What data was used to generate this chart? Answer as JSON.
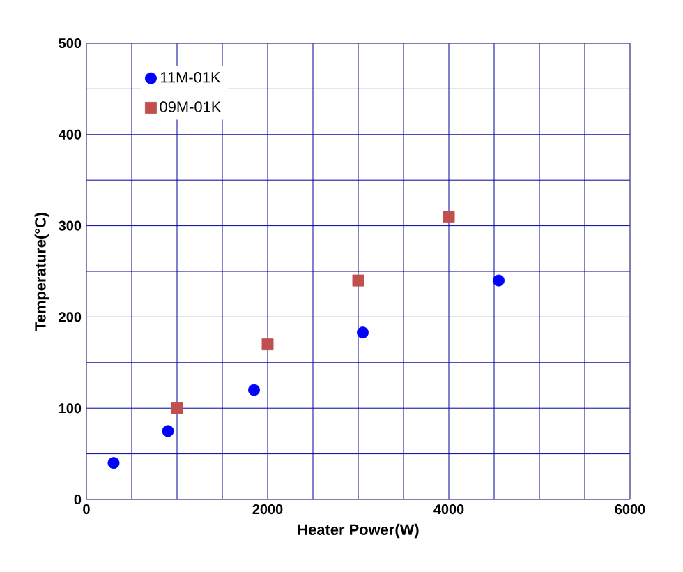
{
  "chart_data": {
    "type": "scatter",
    "xlabel": "Heater Power(W)",
    "ylabel": "Temperature(°C)",
    "xlim": [
      0,
      6000
    ],
    "xticks": [
      0,
      2000,
      4000,
      6000
    ],
    "ylim": [
      0,
      500
    ],
    "yticks": [
      0,
      100,
      200,
      300,
      400,
      500
    ],
    "grid": true,
    "legend": "top left",
    "series": [
      {
        "name": "11M-01K",
        "color": "#0000ff",
        "marker": "circle",
        "x": [
          300,
          900,
          1850,
          3050,
          4550
        ],
        "values": [
          40,
          75,
          120,
          183,
          240
        ]
      },
      {
        "name": "09M-01K",
        "color": "#c0504d",
        "marker": "square",
        "x": [
          1000,
          2000,
          3000,
          4000
        ],
        "values": [
          100,
          170,
          240,
          310
        ]
      }
    ]
  }
}
